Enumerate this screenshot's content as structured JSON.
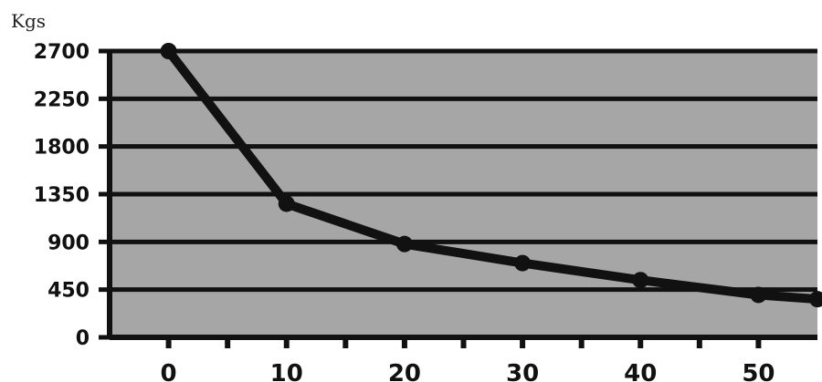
{
  "chart_data": {
    "type": "line",
    "title": "",
    "xlabel": "",
    "ylabel": "Kgs",
    "x": [
      0,
      10,
      20,
      30,
      40,
      50,
      55
    ],
    "series": [
      {
        "values": [
          2700,
          1260,
          880,
          700,
          540,
          400,
          360
        ]
      }
    ],
    "x_ticks": [
      0,
      10,
      20,
      30,
      40,
      50
    ],
    "x_minor_ticks": [
      5,
      15,
      25,
      35,
      45
    ],
    "y_ticks": [
      0,
      450,
      900,
      1350,
      1800,
      2250,
      2700
    ],
    "y_tick_labels": [
      "0",
      "450",
      "900",
      "1350",
      "1800",
      "2250",
      "2700"
    ],
    "xlim": [
      -5,
      55
    ],
    "ylim": [
      0,
      2700
    ],
    "grid": true,
    "legend": "none",
    "colors": {
      "plot_background": "#a6a6a6",
      "line": "#111111",
      "grid": "#111111",
      "axis": "#111111"
    }
  }
}
